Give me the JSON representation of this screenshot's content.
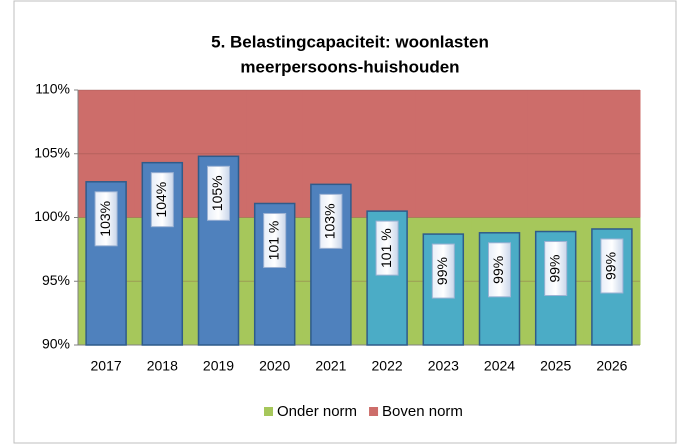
{
  "chart_data": {
    "type": "bar",
    "title": [
      "5. Belastingcapaciteit: woonlasten",
      "meerpersoons-huishouden"
    ],
    "categories": [
      "2017",
      "2018",
      "2019",
      "2020",
      "2021",
      "2022",
      "2023",
      "2024",
      "2025",
      "2026"
    ],
    "values": [
      102.8,
      104.3,
      104.8,
      101.1,
      102.6,
      100.5,
      98.7,
      98.8,
      98.9,
      99.1
    ],
    "value_labels": [
      "103%",
      "104%",
      "105%",
      "101 %",
      "103%",
      "101 %",
      "99%",
      "99%",
      "99%",
      "99%"
    ],
    "colors": [
      "#4f81bd",
      "#4f81bd",
      "#4f81bd",
      "#4f81bd",
      "#4f81bd",
      "#4bacc6",
      "#4bacc6",
      "#4bacc6",
      "#4bacc6",
      "#4bacc6"
    ],
    "areas": [
      {
        "name": "Onder norm",
        "color": "#a6c75b",
        "values": [
          100,
          100,
          100,
          100,
          100,
          100,
          100,
          100,
          100,
          100
        ]
      },
      {
        "name": "Boven norm",
        "color": "#cd6d6a",
        "values": [
          10,
          10,
          10,
          10,
          10,
          10,
          10,
          10,
          10,
          10
        ]
      }
    ],
    "ylim": [
      90,
      110
    ],
    "yticks": [
      {
        "value": 90,
        "label": "90%"
      },
      {
        "value": 95,
        "label": "95%"
      },
      {
        "value": 100,
        "label": "100%"
      },
      {
        "value": 105,
        "label": "105%"
      },
      {
        "value": 110,
        "label": "110%"
      }
    ],
    "grid": true,
    "legend": "bottom"
  }
}
